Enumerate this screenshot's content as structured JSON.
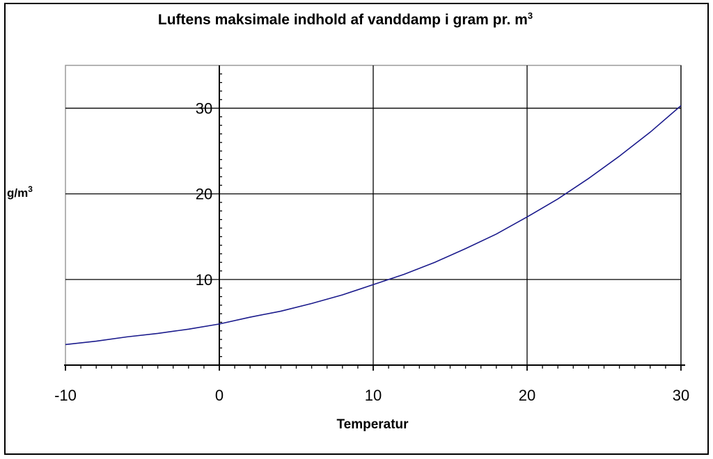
{
  "chart_data": {
    "type": "line",
    "title": "Luftens maksimale indhold af vanddamp i gram pr. m",
    "title_sup": "3",
    "xlabel": "Temperatur",
    "ylabel": "g/m",
    "ylabel_sup": "3",
    "xlim": [
      -10,
      30
    ],
    "ylim": [
      0,
      35
    ],
    "xticks": [
      -10,
      0,
      10,
      20,
      30
    ],
    "yticks": [
      10,
      20,
      30
    ],
    "grid": true,
    "series": [
      {
        "color": "#1a1a8c",
        "x": [
          -10,
          -8,
          -6,
          -4,
          -2,
          0,
          2,
          4,
          6,
          8,
          10,
          12,
          14,
          16,
          18,
          20,
          22,
          24,
          26,
          28,
          30
        ],
        "y": [
          2.4,
          2.8,
          3.3,
          3.7,
          4.2,
          4.8,
          5.6,
          6.3,
          7.2,
          8.2,
          9.4,
          10.6,
          12.0,
          13.6,
          15.3,
          17.3,
          19.4,
          21.8,
          24.4,
          27.2,
          30.3
        ]
      }
    ]
  }
}
